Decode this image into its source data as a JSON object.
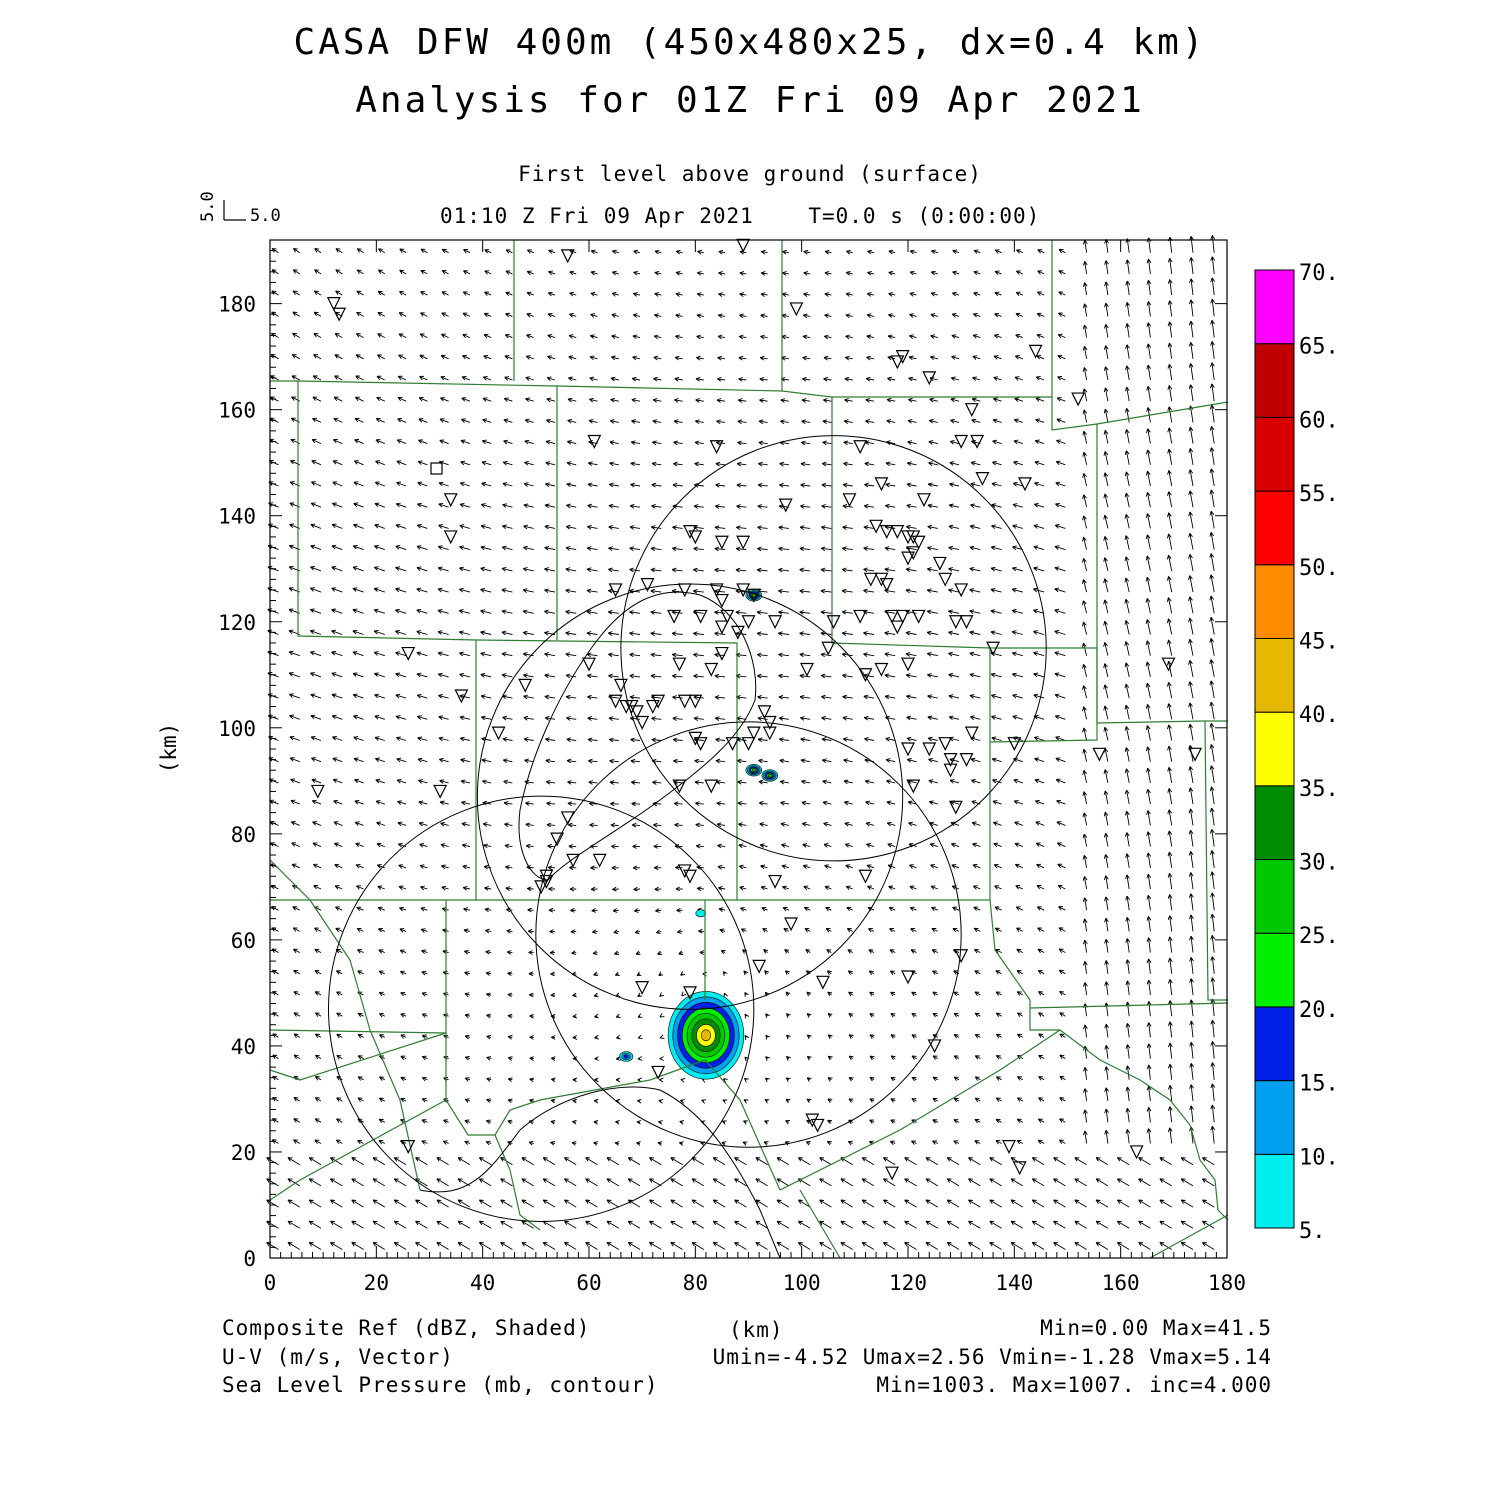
{
  "header": {
    "title_line1": "CASA DFW 400m (450x480x25, dx=0.4 km)",
    "title_line2": "Analysis for 01Z Fri 09 Apr 2021",
    "level": "First level above ground (surface)",
    "valid_time": "01:10 Z Fri 09 Apr 2021    T=0.0 s (0:00:00)"
  },
  "vector_key": {
    "u_label": "5.0",
    "v_label": "5.0"
  },
  "footer": {
    "left1": "Composite Ref (dBZ, Shaded)",
    "left2": "U-V (m/s, Vector)",
    "left3": "Sea Level Pressure (mb, contour)",
    "center": "(km)",
    "right1": "Min=0.00 Max=41.5",
    "right2": "Umin=-4.52 Umax=2.56 Vmin=-1.28 Vmax=5.14",
    "right3": "Min=1003. Max=1007. inc=4.000"
  },
  "chart_data": {
    "type": "heatmap",
    "xlabel": "",
    "ylabel": "(km)",
    "xlim": [
      0,
      180
    ],
    "ylim": [
      0,
      192
    ],
    "x_ticks": [
      0,
      20,
      40,
      60,
      80,
      100,
      120,
      140,
      160,
      180
    ],
    "y_ticks": [
      0,
      20,
      40,
      60,
      80,
      100,
      120,
      140,
      160,
      180
    ],
    "colorbar": {
      "levels": [
        5,
        10,
        15,
        20,
        25,
        30,
        35,
        40,
        45,
        50,
        55,
        60,
        65,
        70
      ],
      "labels": [
        "5.",
        "10.",
        "15.",
        "20.",
        "25.",
        "30.",
        "35.",
        "40.",
        "45.",
        "50.",
        "55.",
        "60.",
        "65.",
        "70."
      ],
      "colors": [
        "#00eeee",
        "#00a0f0",
        "#0020e8",
        "#00ee00",
        "#00c800",
        "#008c00",
        "#ffff00",
        "#e6b800",
        "#ff8c00",
        "#ff0000",
        "#d80000",
        "#c00000",
        "#ff00ff"
      ]
    },
    "reflectivity_cells": [
      {
        "x": 82,
        "y": 42,
        "peak_dbz": 41.5
      },
      {
        "x": 91,
        "y": 125,
        "peak_dbz": 25
      },
      {
        "x": 91,
        "y": 92,
        "peak_dbz": 25
      },
      {
        "x": 94,
        "y": 91,
        "peak_dbz": 25
      },
      {
        "x": 67,
        "y": 38,
        "peak_dbz": 15
      },
      {
        "x": 81,
        "y": 65,
        "peak_dbz": 8
      }
    ],
    "radar_range_rings": [
      {
        "cx": 106,
        "cy": 115,
        "r": 40
      },
      {
        "cx": 79,
        "cy": 87,
        "r": 40
      },
      {
        "cx": 51,
        "cy": 47,
        "r": 40
      },
      {
        "cx": 90,
        "cy": 61,
        "r": 40
      }
    ],
    "slp_contour": {
      "level": 1007
    },
    "stations": [
      [
        12,
        180
      ],
      [
        13,
        178
      ],
      [
        56,
        189
      ],
      [
        89,
        191
      ],
      [
        99,
        179
      ],
      [
        118,
        169
      ],
      [
        119,
        170
      ],
      [
        124,
        166
      ],
      [
        144,
        171
      ],
      [
        152,
        162
      ],
      [
        132,
        160
      ],
      [
        61,
        154
      ],
      [
        84,
        153
      ],
      [
        111,
        153
      ],
      [
        130,
        154
      ],
      [
        133,
        154
      ],
      [
        134,
        147
      ],
      [
        142,
        146
      ],
      [
        115,
        146
      ],
      [
        109,
        143
      ],
      [
        123,
        143
      ],
      [
        97,
        142
      ],
      [
        34,
        143
      ],
      [
        34,
        136
      ],
      [
        79,
        137
      ],
      [
        80,
        136
      ],
      [
        85,
        135
      ],
      [
        89,
        135
      ],
      [
        114,
        138
      ],
      [
        116,
        137
      ],
      [
        118,
        137
      ],
      [
        120,
        136
      ],
      [
        121,
        136
      ],
      [
        122,
        135
      ],
      [
        120,
        132
      ],
      [
        121,
        133
      ],
      [
        126,
        131
      ],
      [
        127,
        128
      ],
      [
        130,
        126
      ],
      [
        113,
        128
      ],
      [
        115,
        128
      ],
      [
        116,
        127
      ],
      [
        91,
        125
      ],
      [
        65,
        126
      ],
      [
        71,
        127
      ],
      [
        78,
        126
      ],
      [
        84,
        126
      ],
      [
        85,
        124
      ],
      [
        89,
        126
      ],
      [
        76,
        121
      ],
      [
        81,
        121
      ],
      [
        86,
        121
      ],
      [
        90,
        120
      ],
      [
        95,
        120
      ],
      [
        85,
        119
      ],
      [
        88,
        118
      ],
      [
        106,
        120
      ],
      [
        111,
        121
      ],
      [
        117,
        121
      ],
      [
        119,
        121
      ],
      [
        122,
        121
      ],
      [
        118,
        119
      ],
      [
        129,
        120
      ],
      [
        131,
        120
      ],
      [
        136,
        115
      ],
      [
        26,
        114
      ],
      [
        60,
        112
      ],
      [
        77,
        112
      ],
      [
        83,
        111
      ],
      [
        85,
        114
      ],
      [
        101,
        111
      ],
      [
        105,
        115
      ],
      [
        112,
        110
      ],
      [
        115,
        111
      ],
      [
        120,
        112
      ],
      [
        36,
        106
      ],
      [
        48,
        108
      ],
      [
        65,
        105
      ],
      [
        67,
        104
      ],
      [
        68,
        104
      ],
      [
        69,
        103
      ],
      [
        72,
        104
      ],
      [
        73,
        105
      ],
      [
        78,
        105
      ],
      [
        80,
        105
      ],
      [
        66,
        108
      ],
      [
        93,
        103
      ],
      [
        94,
        101
      ],
      [
        70,
        101
      ],
      [
        43,
        99
      ],
      [
        91,
        99
      ],
      [
        94,
        99
      ],
      [
        80,
        98
      ],
      [
        81,
        97
      ],
      [
        87,
        97
      ],
      [
        90,
        97
      ],
      [
        120,
        96
      ],
      [
        124,
        96
      ],
      [
        127,
        97
      ],
      [
        128,
        94
      ],
      [
        132,
        99
      ],
      [
        131,
        94
      ],
      [
        128,
        92
      ],
      [
        140,
        97
      ],
      [
        156,
        95
      ],
      [
        174,
        95
      ],
      [
        169,
        112
      ],
      [
        9,
        88
      ],
      [
        32,
        88
      ],
      [
        77,
        89
      ],
      [
        83,
        89
      ],
      [
        121,
        89
      ],
      [
        129,
        85
      ],
      [
        56,
        83
      ],
      [
        54,
        79
      ],
      [
        57,
        75
      ],
      [
        62,
        75
      ],
      [
        52,
        72
      ],
      [
        52,
        71
      ],
      [
        51,
        70
      ],
      [
        78,
        73
      ],
      [
        79,
        72
      ],
      [
        95,
        71
      ],
      [
        112,
        72
      ],
      [
        98,
        63
      ],
      [
        92,
        55
      ],
      [
        130,
        57
      ],
      [
        120,
        53
      ],
      [
        104,
        52
      ],
      [
        70,
        51
      ],
      [
        79,
        50
      ],
      [
        125,
        40
      ],
      [
        73,
        35
      ],
      [
        102,
        26
      ],
      [
        103,
        25
      ],
      [
        26,
        21
      ],
      [
        139,
        21
      ],
      [
        141,
        17
      ],
      [
        163,
        20
      ],
      [
        117,
        16
      ]
    ]
  }
}
